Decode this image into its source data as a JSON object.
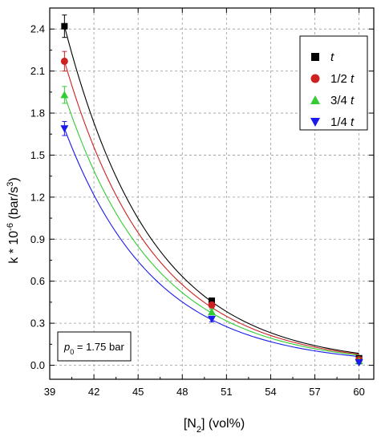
{
  "chart_data": {
    "type": "scatter",
    "title": "",
    "xlim": [
      39,
      61
    ],
    "ylim": [
      -0.1,
      2.55
    ],
    "xticks": [
      "39",
      "42",
      "45",
      "48",
      "51",
      "54",
      "57",
      "60"
    ],
    "yticks": [
      "0.0",
      "0.3",
      "0.6",
      "0.9",
      "1.2",
      "1.5",
      "1.8",
      "2.1",
      "2.4"
    ],
    "grid": true,
    "legend_position": "top-right",
    "series": [
      {
        "name": "t",
        "italic_part": "t",
        "prefix": "",
        "color": "#000000",
        "marker": "square",
        "x": [
          40,
          50,
          60
        ],
        "y": [
          2.42,
          0.46,
          0.05
        ],
        "yerr": [
          0.08,
          0.02,
          0.01
        ],
        "fit_a": 2.42,
        "fit_k": 0.1675
      },
      {
        "name": "1/2 t",
        "italic_part": "t",
        "prefix": "1/2 ",
        "color": "#cc2222",
        "marker": "circle",
        "x": [
          40,
          50,
          60
        ],
        "y": [
          2.17,
          0.43,
          0.04
        ],
        "yerr": [
          0.07,
          0.02,
          0.01
        ],
        "fit_a": 2.17,
        "fit_k": 0.166
      },
      {
        "name": "3/4 t",
        "italic_part": "t",
        "prefix": "3/4 ",
        "color": "#33cc33",
        "marker": "triangle-up",
        "x": [
          40,
          50,
          60
        ],
        "y": [
          1.93,
          0.38,
          0.03
        ],
        "yerr": [
          0.06,
          0.02,
          0.01
        ],
        "fit_a": 1.93,
        "fit_k": 0.1644
      },
      {
        "name": "1/4 t",
        "italic_part": "t",
        "prefix": "1/4 ",
        "color": "#1a1aee",
        "marker": "triangle-down",
        "x": [
          40,
          50,
          60
        ],
        "y": [
          1.69,
          0.33,
          0.02
        ],
        "yerr": [
          0.05,
          0.02,
          0.01
        ],
        "fit_a": 1.69,
        "fit_k": 0.1649
      }
    ],
    "annotation": {
      "symbol": "p",
      "subscript": "0",
      "rest": " = 1.75 bar"
    },
    "ylabel": {
      "main": "k * 10",
      "exponent": "-6",
      "units": " (bar/s",
      "units_exponent": "3",
      "close": ")"
    },
    "xlabel": {
      "open": "[N",
      "subscript": "2",
      "rest": "] (vol%)"
    }
  }
}
